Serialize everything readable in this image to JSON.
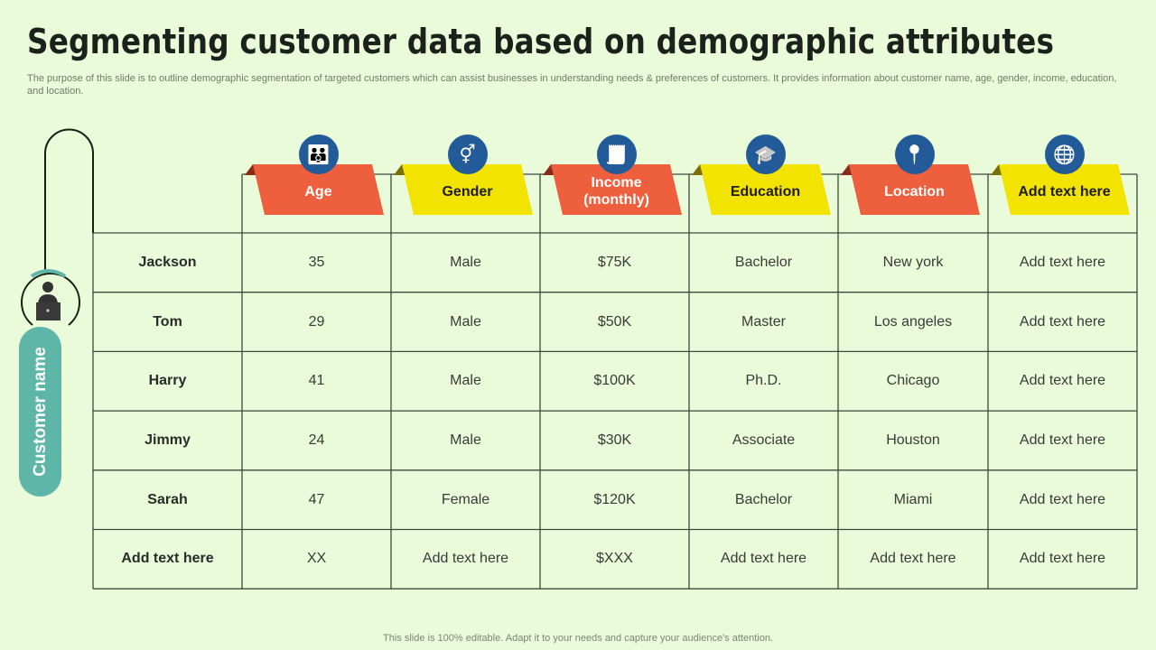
{
  "title": "Segmenting customer data based on demographic attributes",
  "description": "The purpose of this slide is to outline demographic segmentation of targeted customers which can assist businesses in understanding needs & preferences of customers. It provides information about customer name, age, gender, income, education, and location.",
  "side_label": "Customer name",
  "colors": {
    "red": "#ee5f3d",
    "yellow": "#f2e300",
    "icon_bg": "#235a98",
    "teal": "#5db6a8",
    "background": "#e9fbd9"
  },
  "columns": [
    {
      "label": "Age",
      "icon": "family-icon",
      "color": "red"
    },
    {
      "label": "Gender",
      "icon": "gender-icon",
      "color": "yellow"
    },
    {
      "label": "Income (monthly)",
      "icon": "invoice-icon",
      "color": "red"
    },
    {
      "label": "Education",
      "icon": "graduate-icon",
      "color": "yellow"
    },
    {
      "label": "Location",
      "icon": "location-pin-icon",
      "color": "red"
    },
    {
      "label": "Add text here",
      "icon": "globe-icon",
      "color": "yellow"
    }
  ],
  "rows": [
    [
      "Jackson",
      "35",
      "Male",
      "$75K",
      "Bachelor",
      "New york",
      "Add text here"
    ],
    [
      "Tom",
      "29",
      "Male",
      "$50K",
      "Master",
      "Los angeles",
      "Add text here"
    ],
    [
      "Harry",
      "41",
      "Male",
      "$100K",
      "Ph.D.",
      "Chicago",
      "Add text here"
    ],
    [
      "Jimmy",
      "24",
      "Male",
      "$30K",
      "Associate",
      "Houston",
      "Add text here"
    ],
    [
      "Sarah",
      "47",
      "Female",
      "$120K",
      "Bachelor",
      "Miami",
      "Add text here"
    ],
    [
      "Add text here",
      "XX",
      "Add text here",
      "$XXX",
      "Add text here",
      "Add text here",
      "Add text here"
    ]
  ],
  "footer": "This slide is 100% editable. Adapt it to your needs and capture your audience's attention."
}
